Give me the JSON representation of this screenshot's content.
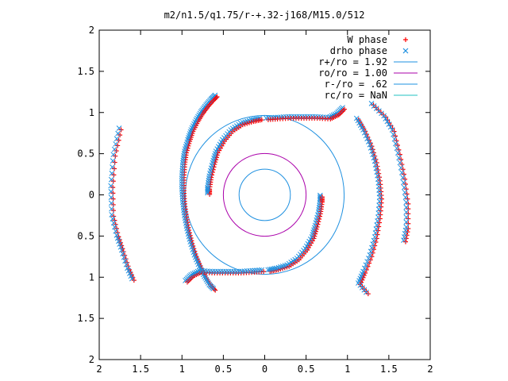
{
  "chart_data": {
    "type": "scatter",
    "title": "m2/n1.5/q1.75/r-+.32-j168/M15.0/512",
    "xlabel": "",
    "ylabel": "",
    "xlim": [
      -2,
      2
    ],
    "ylim": [
      -2,
      2
    ],
    "x_tick_labels": [
      "2",
      "1.5",
      "1",
      "0.5",
      "0",
      "0.5",
      "1",
      "1.5",
      "2"
    ],
    "y_tick_labels": [
      "2",
      "1.5",
      "1",
      "0.5",
      "0",
      "0.5",
      "1",
      "1.5",
      "2"
    ],
    "grid": false,
    "legend_position": "top-right",
    "series": [
      {
        "name": "W phase",
        "marker": "plus",
        "color": "#ff0000"
      },
      {
        "name": "drho phase",
        "marker": "cross",
        "color": "#1e90e0"
      },
      {
        "name": "r+/ro = 1.92",
        "marker": "line",
        "color": "#1e90e0",
        "radius": 0.96
      },
      {
        "name": "ro/ro = 1.00",
        "marker": "line",
        "color": "#aa00aa",
        "radius": 0.5
      },
      {
        "name": "r-/ro = .62",
        "marker": "line",
        "color": "#1e90e0",
        "radius": 0.31
      },
      {
        "name": "rc/ro = NaN",
        "marker": "line",
        "color": "#20c0c0"
      }
    ],
    "arms": [
      {
        "name": "outer-left",
        "points": [
          [
            -0.59,
            1.2
          ],
          [
            -0.64,
            1.15
          ],
          [
            -0.7,
            1.08
          ],
          [
            -0.76,
            1.0
          ],
          [
            -0.82,
            0.9
          ],
          [
            -0.88,
            0.78
          ],
          [
            -0.92,
            0.66
          ],
          [
            -0.96,
            0.52
          ],
          [
            -0.98,
            0.38
          ],
          [
            -0.99,
            0.22
          ],
          [
            -0.99,
            0.06
          ],
          [
            -0.98,
            -0.1
          ],
          [
            -0.96,
            -0.26
          ],
          [
            -0.93,
            -0.42
          ],
          [
            -0.89,
            -0.58
          ],
          [
            -0.84,
            -0.74
          ],
          [
            -0.78,
            -0.88
          ],
          [
            -0.72,
            -1.0
          ],
          [
            -0.66,
            -1.1
          ],
          [
            -0.6,
            -1.16
          ]
        ]
      },
      {
        "name": "outermost-left",
        "points": [
          [
            -1.75,
            0.8
          ],
          [
            -1.82,
            0.48
          ],
          [
            -1.85,
            0.1
          ],
          [
            -1.84,
            -0.25
          ],
          [
            -1.78,
            -0.5
          ],
          [
            -1.72,
            -0.68
          ],
          [
            -1.65,
            -0.9
          ],
          [
            -1.58,
            -1.06
          ]
        ]
      },
      {
        "name": "inner-left",
        "points": [
          [
            -0.05,
            0.92
          ],
          [
            -0.15,
            0.9
          ],
          [
            -0.28,
            0.86
          ],
          [
            -0.4,
            0.78
          ],
          [
            -0.5,
            0.66
          ],
          [
            -0.58,
            0.52
          ],
          [
            -0.62,
            0.38
          ],
          [
            -0.66,
            0.22
          ],
          [
            -0.68,
            0.08
          ],
          [
            -0.68,
            0.0
          ]
        ]
      },
      {
        "name": "inner-right",
        "points": [
          [
            0.05,
            -0.92
          ],
          [
            0.15,
            -0.9
          ],
          [
            0.28,
            -0.86
          ],
          [
            0.4,
            -0.78
          ],
          [
            0.5,
            -0.66
          ],
          [
            0.58,
            -0.52
          ],
          [
            0.62,
            -0.38
          ],
          [
            0.66,
            -0.22
          ],
          [
            0.68,
            -0.08
          ],
          [
            0.68,
            0.0
          ]
        ]
      },
      {
        "name": "middle-top",
        "points": [
          [
            0.95,
            1.05
          ],
          [
            0.88,
            0.98
          ],
          [
            0.78,
            0.93
          ],
          [
            0.62,
            0.94
          ],
          [
            0.46,
            0.94
          ],
          [
            0.3,
            0.94
          ],
          [
            0.14,
            0.93
          ],
          [
            0.0,
            0.92
          ]
        ]
      },
      {
        "name": "middle-bottom",
        "points": [
          [
            -0.95,
            -1.05
          ],
          [
            -0.88,
            -0.98
          ],
          [
            -0.78,
            -0.93
          ],
          [
            -0.62,
            -0.94
          ],
          [
            -0.46,
            -0.94
          ],
          [
            -0.3,
            -0.94
          ],
          [
            -0.14,
            -0.93
          ],
          [
            0.0,
            -0.92
          ]
        ]
      },
      {
        "name": "outer-right",
        "points": [
          [
            1.12,
            0.92
          ],
          [
            1.2,
            0.78
          ],
          [
            1.28,
            0.6
          ],
          [
            1.34,
            0.4
          ],
          [
            1.38,
            0.18
          ],
          [
            1.4,
            -0.04
          ],
          [
            1.38,
            -0.28
          ],
          [
            1.34,
            -0.52
          ],
          [
            1.28,
            -0.74
          ],
          [
            1.2,
            -0.94
          ],
          [
            1.14,
            -1.08
          ],
          [
            1.26,
            -1.22
          ]
        ]
      },
      {
        "name": "outermost-right",
        "points": [
          [
            1.3,
            1.1
          ],
          [
            1.45,
            0.95
          ],
          [
            1.55,
            0.78
          ],
          [
            1.62,
            0.5
          ],
          [
            1.68,
            0.2
          ],
          [
            1.72,
            -0.1
          ],
          [
            1.72,
            -0.4
          ],
          [
            1.68,
            -0.6
          ]
        ]
      }
    ]
  }
}
